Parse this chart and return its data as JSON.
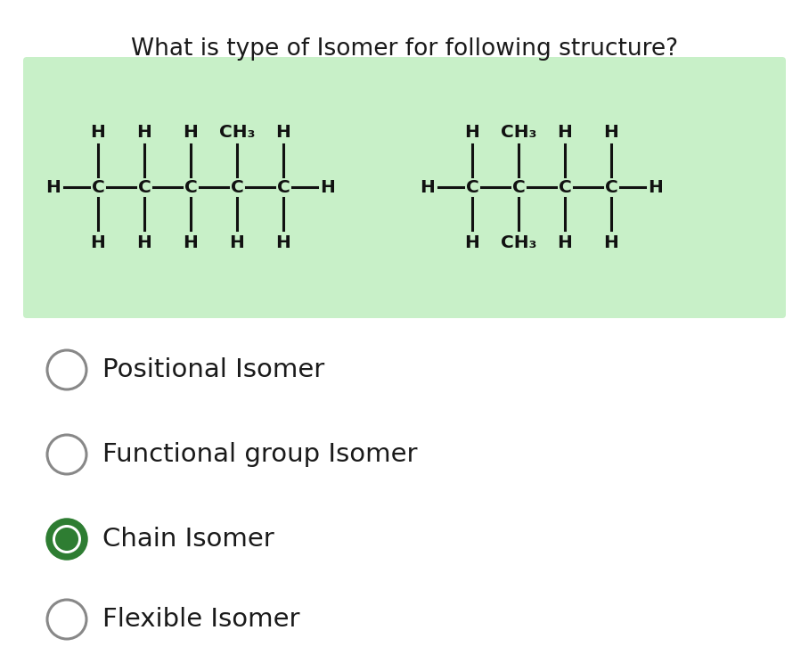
{
  "title": "What is type of Isomer for following structure?",
  "title_fontsize": 19,
  "bg_color": "#ffffff",
  "green_box_color": "#c8f0c8",
  "options": [
    {
      "text": "Positional Isomer",
      "selected": false
    },
    {
      "text": "Functional group Isomer",
      "selected": false
    },
    {
      "text": "Chain Isomer",
      "selected": true
    },
    {
      "text": "Flexible Isomer",
      "selected": false
    }
  ],
  "option_fontsize": 21,
  "selected_color": "#2e7d32",
  "unselected_color": "#888888",
  "text_color": "#1a1a1a",
  "struct_fontsize": 14.5,
  "atom_color": "#111111"
}
